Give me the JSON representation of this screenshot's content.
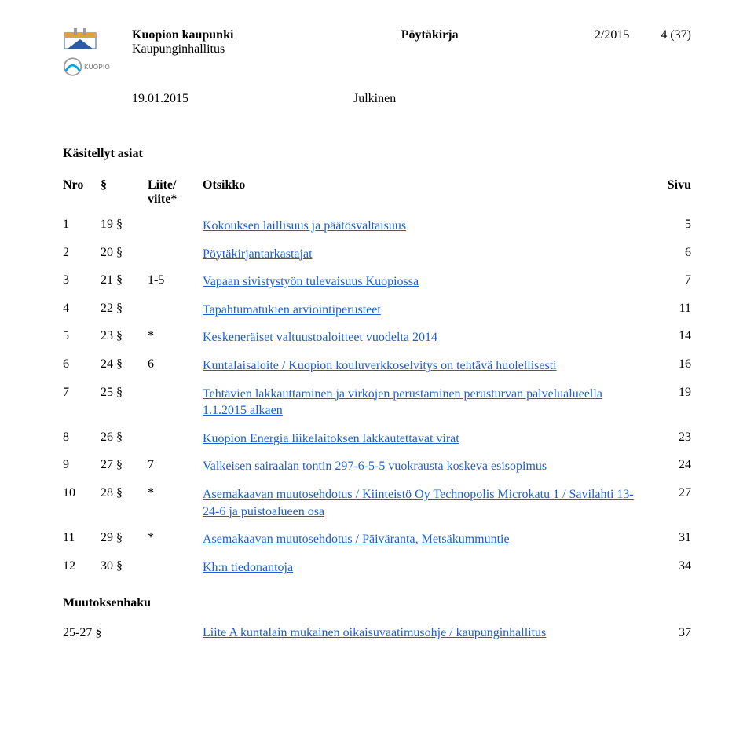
{
  "colors": {
    "link": "#1a5fd0",
    "text": "#000000",
    "background": "#ffffff",
    "logo_blue": "#00a7e1",
    "logo_grey": "#9b9b9b",
    "crest_gold": "#d9a441",
    "crest_blue": "#2e5aa8"
  },
  "header": {
    "org": "Kuopion kaupunki",
    "unit": "Kaupunginhallitus",
    "doc_type": "Pöytäkirja",
    "doc_no": "2/2015",
    "page": "4 (37)",
    "date": "19.01.2015",
    "visibility": "Julkinen",
    "logo_label": "KUOPIO"
  },
  "section_title": "Käsitellyt asiat",
  "columns": {
    "nro": "Nro",
    "section": "§",
    "liite": "Liite/\nviite*",
    "otsikko": "Otsikko",
    "sivu": "Sivu"
  },
  "rows": [
    {
      "nro": "1",
      "sec": "19 §",
      "liite": "",
      "title": "Kokouksen laillisuus ja päätösvaltaisuus",
      "sivu": "5"
    },
    {
      "nro": "2",
      "sec": "20 §",
      "liite": "",
      "title": "Pöytäkirjantarkastajat",
      "sivu": "6"
    },
    {
      "nro": "3",
      "sec": "21 §",
      "liite": "1-5",
      "title": "Vapaan sivistystyön tulevaisuus Kuopiossa",
      "sivu": "7"
    },
    {
      "nro": "4",
      "sec": "22 §",
      "liite": "",
      "title": "Tapahtumatukien arviointiperusteet",
      "sivu": "11"
    },
    {
      "nro": "5",
      "sec": "23 §",
      "liite": "*",
      "title": "Keskeneräiset valtuustoaloitteet vuodelta 2014",
      "sivu": "14"
    },
    {
      "nro": "6",
      "sec": "24 §",
      "liite": "6",
      "title": "Kuntalaisaloite / Kuopion kouluverkkoselvitys on tehtävä huolellisesti",
      "sivu": "16"
    },
    {
      "nro": "7",
      "sec": "25 §",
      "liite": "",
      "title": "Tehtävien lakkauttaminen ja virkojen perustaminen perusturvan palvelualueella 1.1.2015 alkaen",
      "sivu": "19"
    },
    {
      "nro": "8",
      "sec": "26 §",
      "liite": "",
      "title": "Kuopion Energia liikelaitoksen lakkautettavat virat",
      "sivu": "23"
    },
    {
      "nro": "9",
      "sec": "27 §",
      "liite": "7",
      "title": "Valkeisen sairaalan tontin 297-6-5-5 vuokrausta koskeva esisopimus",
      "sivu": "24"
    },
    {
      "nro": "10",
      "sec": "28 §",
      "liite": "*",
      "title": "Asemakaavan muutosehdotus / Kiinteistö Oy Technopolis Microkatu 1 / Savilahti 13-24-6 ja puistoalueen osa",
      "sivu": "27"
    },
    {
      "nro": "11",
      "sec": "29 §",
      "liite": "*",
      "title": "Asemakaavan muutosehdotus / Päiväranta, Metsäkummuntie",
      "sivu": "31"
    },
    {
      "nro": "12",
      "sec": "30 §",
      "liite": "",
      "title": "Kh:n tiedonantoja",
      "sivu": "34"
    }
  ],
  "appeal": {
    "heading": "Muutoksenhaku",
    "range": "25-27 §",
    "text": "Liite A kuntalain mukainen oikaisuvaatimusohje / kaupunginhallitus",
    "page": "37"
  }
}
